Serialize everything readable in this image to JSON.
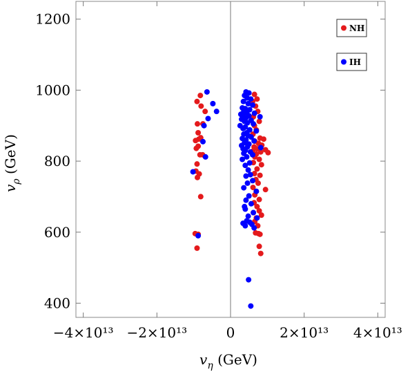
{
  "chart_data": {
    "type": "scatter",
    "xlabel": {
      "base": "v",
      "sub": "η",
      "unit": " (GeV)"
    },
    "ylabel": {
      "base": "v",
      "sub": "ρ",
      "unit": " (GeV)"
    },
    "xlim": [
      -42000000000000.0,
      42000000000000.0
    ],
    "ylim": [
      360,
      1250
    ],
    "x_ticks": [
      {
        "value": -40000000000000.0,
        "label": "−4×10¹³"
      },
      {
        "value": -20000000000000.0,
        "label": "−2×10¹³"
      },
      {
        "value": 0,
        "label": "0"
      },
      {
        "value": 20000000000000.0,
        "label": "2×10¹³"
      },
      {
        "value": 40000000000000.0,
        "label": "4×10¹³"
      }
    ],
    "y_ticks": [
      {
        "value": 400,
        "label": "400"
      },
      {
        "value": 600,
        "label": "600"
      },
      {
        "value": 800,
        "label": "800"
      },
      {
        "value": 1000,
        "label": "1000"
      },
      {
        "value": 1200,
        "label": "1200"
      }
    ],
    "grid": false,
    "legend_position": "top-right",
    "series": [
      {
        "name": "NH",
        "color": "#e41a1c",
        "points": [
          [
            -8200000000000.0,
            985
          ],
          [
            -9100000000000.0,
            968
          ],
          [
            -8000000000000.0,
            955
          ],
          [
            -6900000000000.0,
            940
          ],
          [
            -7500000000000.0,
            905
          ],
          [
            -9000000000000.0,
            905
          ],
          [
            -8800000000000.0,
            880
          ],
          [
            -8100000000000.0,
            866
          ],
          [
            -8600000000000.0,
            862
          ],
          [
            -9500000000000.0,
            858
          ],
          [
            -8800000000000.0,
            842
          ],
          [
            -9300000000000.0,
            836
          ],
          [
            -8300000000000.0,
            818
          ],
          [
            -7600000000000.0,
            818
          ],
          [
            -9100000000000.0,
            792
          ],
          [
            -9400000000000.0,
            772
          ],
          [
            -8500000000000.0,
            764
          ],
          [
            -9000000000000.0,
            754
          ],
          [
            -8100000000000.0,
            700
          ],
          [
            -9600000000000.0,
            596
          ],
          [
            -8800000000000.0,
            594
          ],
          [
            -9100000000000.0,
            555
          ],
          [
            6500000000000.0,
            988
          ],
          [
            7200000000000.0,
            975
          ],
          [
            6000000000000.0,
            968
          ],
          [
            6800000000000.0,
            955
          ],
          [
            7400000000000.0,
            940
          ],
          [
            6200000000000.0,
            925
          ],
          [
            7800000000000.0,
            912
          ],
          [
            6500000000000.0,
            900
          ],
          [
            7000000000000.0,
            888
          ],
          [
            6100000000000.0,
            876
          ],
          [
            8000000000000.0,
            865
          ],
          [
            9000000000000.0,
            862
          ],
          [
            6600000000000.0,
            856
          ],
          [
            7600000000000.0,
            850
          ],
          [
            8500000000000.0,
            845
          ],
          [
            6400000000000.0,
            840
          ],
          [
            7200000000000.0,
            835
          ],
          [
            9500000000000.0,
            832
          ],
          [
            6000000000000.0,
            828
          ],
          [
            8200000000000.0,
            826
          ],
          [
            10200000000000.0,
            824
          ],
          [
            7000000000000.0,
            820
          ],
          [
            6600000000000.0,
            812
          ],
          [
            7800000000000.0,
            805
          ],
          [
            6200000000000.0,
            796
          ],
          [
            8400000000000.0,
            790
          ],
          [
            7200000000000.0,
            778
          ],
          [
            6500000000000.0,
            765
          ],
          [
            8000000000000.0,
            760
          ],
          [
            6900000000000.0,
            748
          ],
          [
            7500000000000.0,
            738
          ],
          [
            6100000000000.0,
            726
          ],
          [
            9500000000000.0,
            720
          ],
          [
            7000000000000.0,
            715
          ],
          [
            6600000000000.0,
            705
          ],
          [
            7800000000000.0,
            692
          ],
          [
            6400000000000.0,
            683
          ],
          [
            7200000000000.0,
            672
          ],
          [
            7800000000000.0,
            660
          ],
          [
            6200000000000.0,
            655
          ],
          [
            8400000000000.0,
            648
          ],
          [
            7000000000000.0,
            640
          ],
          [
            6600000000000.0,
            630
          ],
          [
            7400000000000.0,
            618
          ],
          [
            6800000000000.0,
            598
          ],
          [
            7600000000000.0,
            596
          ],
          [
            8000000000000.0,
            594
          ],
          [
            7800000000000.0,
            560
          ],
          [
            8200000000000.0,
            540
          ]
        ]
      },
      {
        "name": "IH",
        "color": "#0000ff",
        "points": [
          [
            -6400000000000.0,
            995
          ],
          [
            -4800000000000.0,
            962
          ],
          [
            -3800000000000.0,
            940
          ],
          [
            -6100000000000.0,
            920
          ],
          [
            -7200000000000.0,
            900
          ],
          [
            -7500000000000.0,
            855
          ],
          [
            -6800000000000.0,
            812
          ],
          [
            -10200000000000.0,
            770
          ],
          [
            -8800000000000.0,
            590
          ],
          [
            4200000000000.0,
            995
          ],
          [
            5000000000000.0,
            992
          ],
          [
            3800000000000.0,
            985
          ],
          [
            4500000000000.0,
            978
          ],
          [
            5500000000000.0,
            975
          ],
          [
            3500000000000.0,
            968
          ],
          [
            4800000000000.0,
            962
          ],
          [
            6000000000000.0,
            958
          ],
          [
            3200000000000.0,
            950
          ],
          [
            4000000000000.0,
            948
          ],
          [
            5200000000000.0,
            945
          ],
          [
            3600000000000.0,
            940
          ],
          [
            4400000000000.0,
            937
          ],
          [
            6500000000000.0,
            935
          ],
          [
            2800000000000.0,
            932
          ],
          [
            3400000000000.0,
            930
          ],
          [
            5000000000000.0,
            928
          ],
          [
            8000000000000.0,
            925
          ],
          [
            4200000000000.0,
            922
          ],
          [
            3000000000000.0,
            918
          ],
          [
            5600000000000.0,
            915
          ],
          [
            3800000000000.0,
            912
          ],
          [
            4600000000000.0,
            908
          ],
          [
            6200000000000.0,
            905
          ],
          [
            2600000000000.0,
            900
          ],
          [
            4000000000000.0,
            896
          ],
          [
            3400000000000.0,
            892
          ],
          [
            5200000000000.0,
            888
          ],
          [
            7000000000000.0,
            885
          ],
          [
            4400000000000.0,
            880
          ],
          [
            3600000000000.0,
            876
          ],
          [
            4800000000000.0,
            872
          ],
          [
            5600000000000.0,
            868
          ],
          [
            3200000000000.0,
            864
          ],
          [
            4200000000000.0,
            860
          ],
          [
            6400000000000.0,
            857
          ],
          [
            3800000000000.0,
            852
          ],
          [
            5000000000000.0,
            848
          ],
          [
            3000000000000.0,
            844
          ],
          [
            4600000000000.0,
            840
          ],
          [
            8200000000000.0,
            838
          ],
          [
            3400000000000.0,
            835
          ],
          [
            4000000000000.0,
            830
          ],
          [
            5400000000000.0,
            826
          ],
          [
            3600000000000.0,
            822
          ],
          [
            6000000000000.0,
            818
          ],
          [
            4400000000000.0,
            812
          ],
          [
            3200000000000.0,
            805
          ],
          [
            5200000000000.0,
            795
          ],
          [
            4000000000000.0,
            788
          ],
          [
            4800000000000.0,
            775
          ],
          [
            5400000000000.0,
            762
          ],
          [
            4200000000000.0,
            758
          ],
          [
            6000000000000.0,
            745
          ],
          [
            4600000000000.0,
            738
          ],
          [
            3600000000000.0,
            725
          ],
          [
            7000000000000.0,
            715
          ],
          [
            5000000000000.0,
            702
          ],
          [
            4200000000000.0,
            690
          ],
          [
            5600000000000.0,
            680
          ],
          [
            3800000000000.0,
            672
          ],
          [
            4000000000000.0,
            665
          ],
          [
            6200000000000.0,
            655
          ],
          [
            4800000000000.0,
            645
          ],
          [
            7200000000000.0,
            640
          ],
          [
            4400000000000.0,
            632
          ],
          [
            5200000000000.0,
            628
          ],
          [
            3400000000000.0,
            625
          ],
          [
            5800000000000.0,
            622
          ],
          [
            4000000000000.0,
            618
          ],
          [
            6400000000000.0,
            612
          ],
          [
            4900000000000.0,
            466
          ],
          [
            5500000000000.0,
            392
          ]
        ]
      }
    ]
  }
}
